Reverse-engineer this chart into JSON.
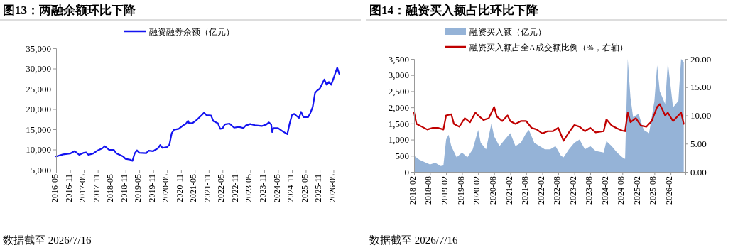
{
  "chart_data": [
    {
      "type": "line",
      "title": "图13：两融余额环比下降",
      "annotations": [
        "数据截至 2026/7/16"
      ],
      "legend": "top",
      "xlim": [
        "2016-05",
        "2026-07-20"
      ],
      "xticks": [
        "2016-05",
        "2016-11",
        "2017-05",
        "2017-11",
        "2018-05",
        "2018-11",
        "2019-05",
        "2019-11",
        "2020-05",
        "2020-11",
        "2021-05",
        "2021-11",
        "2022-05",
        "2022-11",
        "2023-05",
        "2023-11",
        "2024-05",
        "2024-11",
        "2025-05",
        "2025-11",
        "2026-05"
      ],
      "ylim": [
        5000,
        35000
      ],
      "yticks": [
        {
          "value": 5000,
          "label": "5,000"
        },
        {
          "value": 10000,
          "label": "10,000"
        },
        {
          "value": 15000,
          "label": "15,000"
        },
        {
          "value": 20000,
          "label": "20,000"
        },
        {
          "value": 25000,
          "label": "25,000"
        },
        {
          "value": 30000,
          "label": "30,000"
        },
        {
          "value": 35000,
          "label": "35,000"
        }
      ],
      "series": [
        {
          "name": "融资融券余额（亿元）",
          "color": "#1414f0",
          "x": [
            "2016-05",
            "2016-08",
            "2016-11",
            "2017-01",
            "2017-03",
            "2017-05",
            "2017-06",
            "2017-07",
            "2017-09",
            "2017-11",
            "2018-01",
            "2018-02",
            "2018-04",
            "2018-06",
            "2018-07",
            "2018-10",
            "2018-11",
            "2019-01",
            "2019-01-31",
            "2019-03",
            "2019-04",
            "2019-05",
            "2019-08",
            "2019-09",
            "2019-11",
            "2020-01",
            "2020-02",
            "2020-03",
            "2020-05",
            "2020-06",
            "2020-07",
            "2020-08",
            "2020-10",
            "2020-12",
            "2021-01",
            "2021-02",
            "2021-02-15",
            "2021-04",
            "2021-06",
            "2021-08",
            "2021-09",
            "2021-10",
            "2021-12",
            "2022-01",
            "2022-03",
            "2022-04",
            "2022-05",
            "2022-06",
            "2022-08",
            "2022-10",
            "2022-12",
            "2023-02",
            "2023-03",
            "2023-05",
            "2023-07",
            "2023-10",
            "2023-12",
            "2024-01",
            "2024-02",
            "2024-02-15",
            "2024-03",
            "2024-05",
            "2024-07",
            "2024-09",
            "2024-10",
            "2024-11",
            "2024-12",
            "2025-02",
            "2025-03",
            "2025-04",
            "2025-06",
            "2025-07",
            "2025-08",
            "2025-09",
            "2025-10",
            "2025-11",
            "2026-01",
            "2026-02",
            "2026-03",
            "2026-04",
            "2026-05",
            "2026-06",
            "2026-06-20",
            "2026-07-16"
          ],
          "values": [
            8300,
            8800,
            9000,
            9600,
            8700,
            9200,
            9300,
            8700,
            9000,
            9800,
            10300,
            10800,
            9900,
            9900,
            9100,
            8300,
            7700,
            7500,
            7200,
            9000,
            9800,
            9200,
            9100,
            9700,
            9600,
            10300,
            11100,
            10400,
            10600,
            11200,
            14000,
            14900,
            15100,
            16000,
            16300,
            17100,
            16500,
            16500,
            17400,
            18500,
            19100,
            18500,
            18400,
            17000,
            16500,
            15100,
            15200,
            16200,
            16400,
            15400,
            15600,
            15300,
            15900,
            16300,
            16000,
            15800,
            16200,
            16700,
            16200,
            14300,
            15300,
            15300,
            14500,
            13800,
            16400,
            18500,
            18800,
            17800,
            19300,
            18000,
            18000,
            19000,
            20500,
            24000,
            24600,
            25000,
            27300,
            26000,
            26700,
            26000,
            27500,
            29200,
            30200,
            28700
          ]
        }
      ]
    },
    {
      "type": "area",
      "title": "图14：融资买入额占比环比下降",
      "annotations": [
        "数据截至 2026/7/16"
      ],
      "legend": "top",
      "xlim": [
        "2018-02",
        "2026-07-20"
      ],
      "xticks": [
        "2018-02",
        "2018-08",
        "2019-02",
        "2019-08",
        "2020-02",
        "2020-08",
        "2021-02",
        "2021-08",
        "2022-02",
        "2022-08",
        "2023-02",
        "2023-08",
        "2024-02",
        "2024-08",
        "2025-02",
        "2025-08",
        "2026-02"
      ],
      "ylim": [
        0,
        3500
      ],
      "yticks": [
        {
          "value": 0,
          "label": "0"
        },
        {
          "value": 500,
          "label": "500"
        },
        {
          "value": 1000,
          "label": "1,000"
        },
        {
          "value": 1500,
          "label": "1,500"
        },
        {
          "value": 2000,
          "label": "2,000"
        },
        {
          "value": 2500,
          "label": "2,500"
        },
        {
          "value": 3000,
          "label": "3,000"
        },
        {
          "value": 3500,
          "label": "3,500"
        }
      ],
      "y2lim": [
        0,
        20
      ],
      "y2ticks": [
        {
          "value": 0,
          "label": "0.00"
        },
        {
          "value": 5,
          "label": "5.00"
        },
        {
          "value": 10,
          "label": "10.00"
        },
        {
          "value": 15,
          "label": "15.00"
        },
        {
          "value": 20,
          "label": "20.00"
        }
      ],
      "series": [
        {
          "name": "融资买入额（亿元）",
          "color": "#95b3d7",
          "x": [
            "2018-02",
            "2018-04",
            "2018-06",
            "2018-08",
            "2018-10",
            "2018-12",
            "2019-01",
            "2019-02",
            "2019-03",
            "2019-04",
            "2019-06",
            "2019-08",
            "2019-10",
            "2019-12",
            "2020-02",
            "2020-03",
            "2020-05",
            "2020-07",
            "2020-08",
            "2020-10",
            "2020-12",
            "2021-02",
            "2021-04",
            "2021-06",
            "2021-08",
            "2021-09",
            "2021-11",
            "2022-01",
            "2022-03",
            "2022-05",
            "2022-07",
            "2022-09",
            "2022-10",
            "2022-12",
            "2023-02",
            "2023-04",
            "2023-06",
            "2023-08",
            "2023-10",
            "2024-01",
            "2024-02",
            "2024-04",
            "2024-06",
            "2024-08",
            "2024-09",
            "2024-10",
            "2024-11",
            "2024-12",
            "2025-02",
            "2025-04",
            "2025-06",
            "2025-08",
            "2025-09",
            "2025-10",
            "2025-12",
            "2026-01",
            "2026-03",
            "2026-05",
            "2026-06",
            "2026-07"
          ],
          "values": [
            500,
            380,
            300,
            230,
            280,
            180,
            200,
            1000,
            1150,
            800,
            450,
            600,
            450,
            700,
            1300,
            900,
            700,
            1500,
            1100,
            800,
            1000,
            1200,
            800,
            900,
            1200,
            1300,
            900,
            800,
            700,
            700,
            800,
            500,
            450,
            700,
            900,
            1000,
            700,
            800,
            650,
            600,
            950,
            800,
            600,
            450,
            400,
            3500,
            2300,
            1700,
            1800,
            1300,
            1200,
            2200,
            3300,
            2500,
            2100,
            3400,
            2000,
            2200,
            3500,
            3400
          ]
        },
        {
          "name": "融资买入额占全A成交额比例（%，右轴）",
          "type": "line",
          "axis": "y2",
          "color": "#c00000",
          "x": [
            "2018-02",
            "2018-03",
            "2018-05",
            "2018-07",
            "2018-09",
            "2018-11",
            "2019-01",
            "2019-02",
            "2019-04",
            "2019-05",
            "2019-07",
            "2019-09",
            "2019-11",
            "2020-01",
            "2020-02",
            "2020-04",
            "2020-06",
            "2020-08",
            "2020-09",
            "2020-11",
            "2021-01",
            "2021-02",
            "2021-04",
            "2021-06",
            "2021-08",
            "2021-10",
            "2021-12",
            "2022-02",
            "2022-04",
            "2022-06",
            "2022-08",
            "2022-10",
            "2022-12",
            "2023-02",
            "2023-04",
            "2023-06",
            "2023-08",
            "2023-10",
            "2024-01",
            "2024-02",
            "2024-04",
            "2024-06",
            "2024-08",
            "2024-09",
            "2024-10",
            "2024-11",
            "2025-01",
            "2025-03",
            "2025-05",
            "2025-07",
            "2025-09",
            "2025-10",
            "2025-12",
            "2026-01",
            "2026-03",
            "2026-05",
            "2026-06",
            "2026-07"
          ],
          "values": [
            10.5,
            8.5,
            8.0,
            7.5,
            7.8,
            7.8,
            7.5,
            10.0,
            10.2,
            8.5,
            8.0,
            9.5,
            8.8,
            10.5,
            10.0,
            9.2,
            9.5,
            11.5,
            9.8,
            9.0,
            10.0,
            9.0,
            8.5,
            9.0,
            9.0,
            7.8,
            7.5,
            6.8,
            7.2,
            7.2,
            7.8,
            5.5,
            7.0,
            8.3,
            8.0,
            7.2,
            7.8,
            7.0,
            7.2,
            9.3,
            8.2,
            7.7,
            7.3,
            7.2,
            10.5,
            8.8,
            9.5,
            8.2,
            8.0,
            9.0,
            11.5,
            12.0,
            10.0,
            10.5,
            9.0,
            10.0,
            10.5,
            8.5
          ]
        }
      ]
    }
  ]
}
